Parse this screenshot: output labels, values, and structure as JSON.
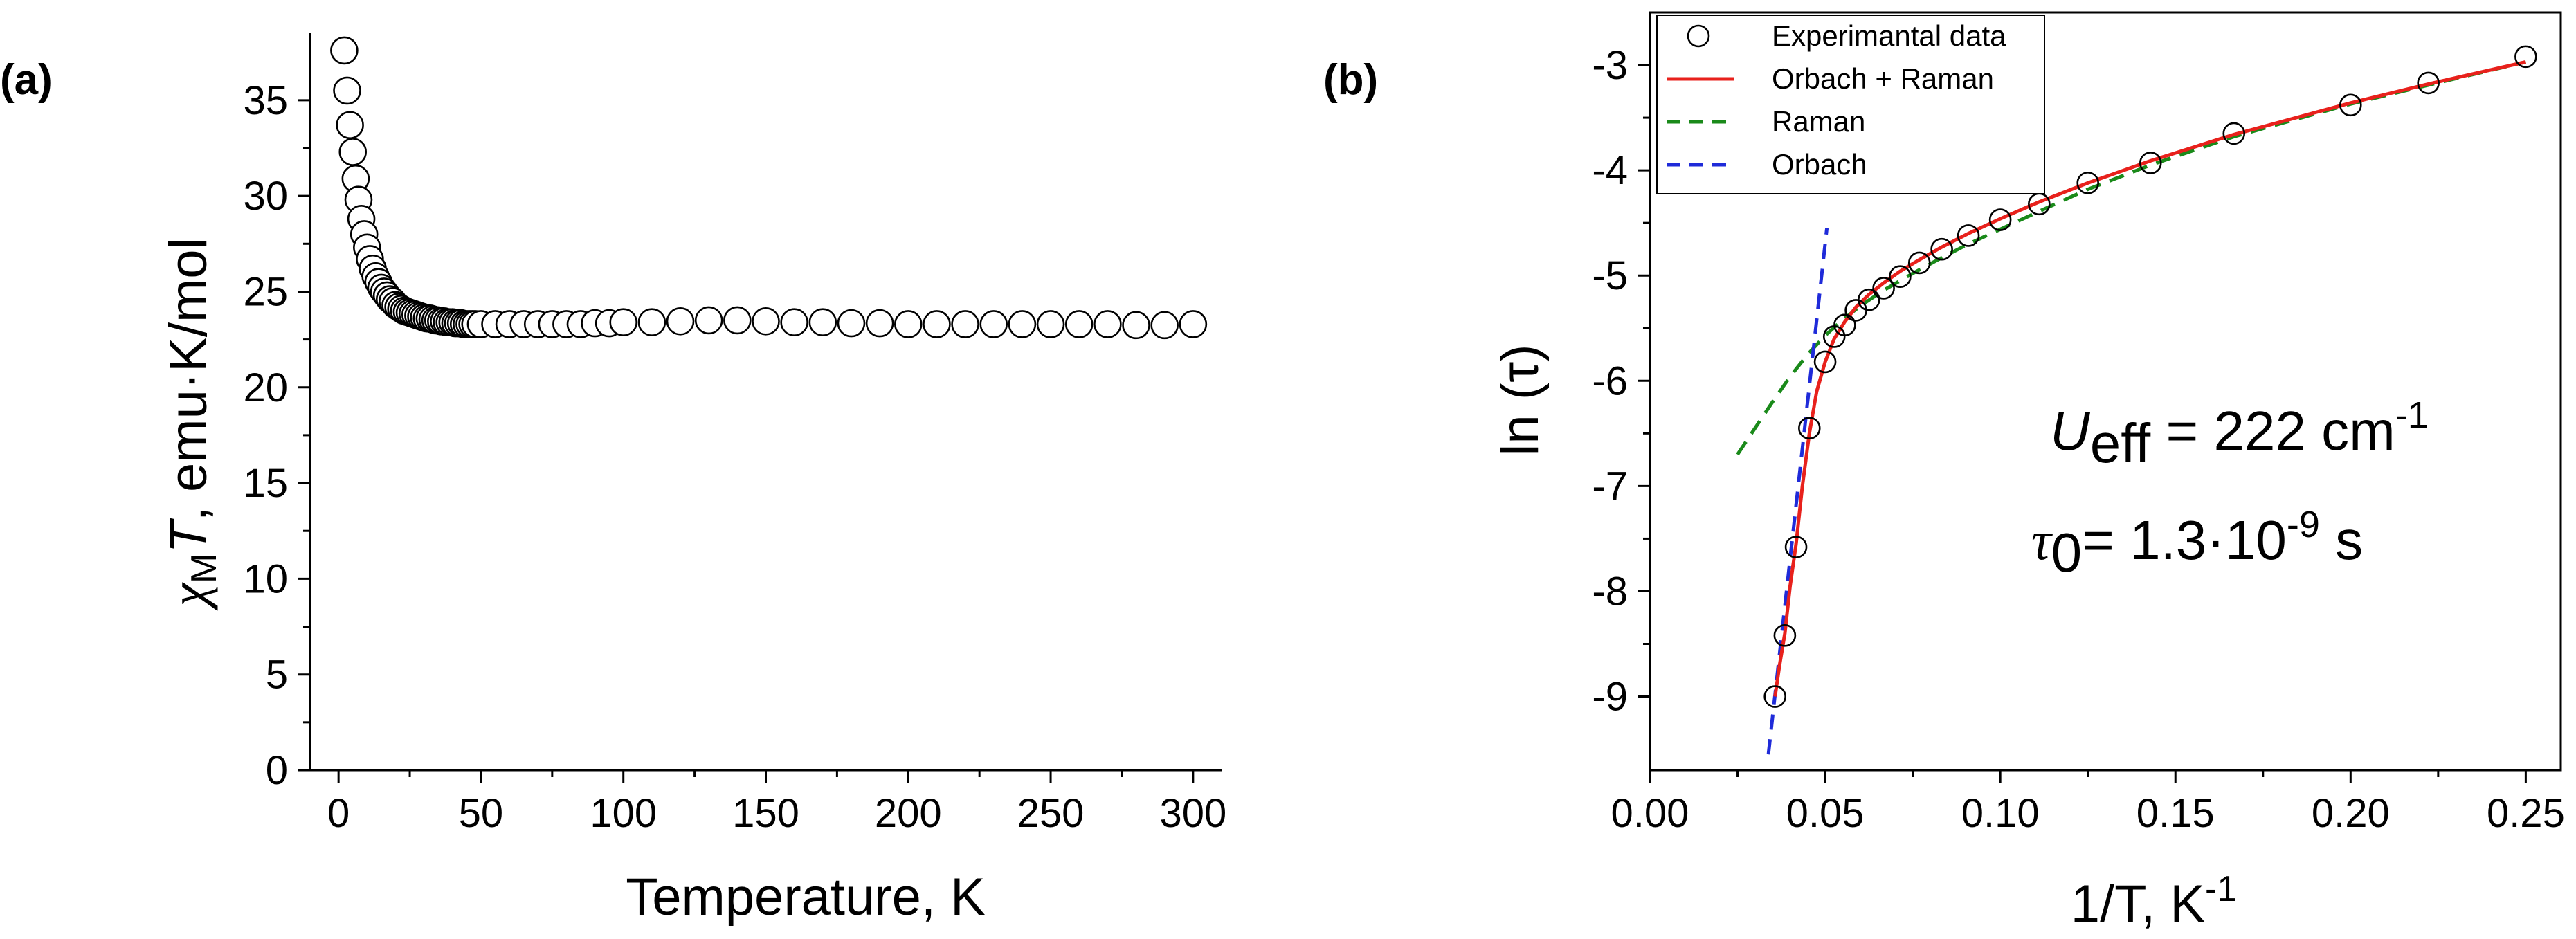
{
  "panels": [
    {
      "label": "(a)",
      "chart_data": {
        "type": "scatter",
        "xlabel": "Temperature, K",
        "ylabel": {
          "chi": "χ",
          "sub": "M",
          "T": "T",
          "rest": ", emu·K/mol"
        },
        "xlim": [
          -10,
          310
        ],
        "ylim": [
          0,
          38.5
        ],
        "xticks": [
          0,
          50,
          100,
          150,
          200,
          250,
          300
        ],
        "yticks": [
          0,
          5,
          10,
          15,
          20,
          25,
          30,
          35
        ],
        "grid": false,
        "series": [
          {
            "marker": "open-circle",
            "x": [
              2,
              3,
              4,
              5,
              6,
              7,
              8,
              9,
              10,
              11,
              12,
              13,
              14,
              15,
              16,
              17,
              18,
              19,
              20,
              21,
              22,
              23,
              24,
              25,
              26,
              27,
              28,
              29,
              30,
              31,
              32,
              33,
              34,
              35,
              36,
              37,
              38,
              39,
              40,
              41,
              42,
              43,
              44,
              45,
              46,
              47,
              48,
              50,
              55,
              60,
              65,
              70,
              75,
              80,
              85,
              90,
              95,
              100,
              110,
              120,
              130,
              140,
              150,
              160,
              170,
              180,
              190,
              200,
              210,
              220,
              230,
              240,
              250,
              260,
              270,
              280,
              290,
              300
            ],
            "y": [
              37.6,
              35.5,
              33.7,
              32.3,
              30.9,
              29.8,
              28.8,
              28.0,
              27.3,
              26.7,
              26.2,
              25.8,
              25.5,
              25.2,
              25.0,
              24.8,
              24.6,
              24.5,
              24.3,
              24.2,
              24.1,
              24.0,
              23.95,
              23.9,
              23.85,
              23.8,
              23.75,
              23.7,
              23.65,
              23.6,
              23.6,
              23.55,
              23.5,
              23.5,
              23.45,
              23.45,
              23.4,
              23.4,
              23.4,
              23.35,
              23.35,
              23.35,
              23.3,
              23.3,
              23.3,
              23.3,
              23.3,
              23.3,
              23.3,
              23.3,
              23.3,
              23.3,
              23.3,
              23.3,
              23.3,
              23.35,
              23.35,
              23.4,
              23.4,
              23.45,
              23.5,
              23.5,
              23.45,
              23.4,
              23.4,
              23.35,
              23.35,
              23.3,
              23.3,
              23.3,
              23.3,
              23.3,
              23.3,
              23.3,
              23.3,
              23.25,
              23.25,
              23.3
            ]
          }
        ]
      }
    },
    {
      "label": "(b)",
      "chart_data": {
        "type": "scatter",
        "xlabel": "1/T, K",
        "xlabel_sup": "-1",
        "ylabel": "ln (τ)",
        "xlim": [
          0.0,
          0.26
        ],
        "ylim": [
          -9.7,
          -2.5
        ],
        "xticks": [
          0.0,
          0.05,
          0.1,
          0.15,
          0.2,
          0.25
        ],
        "xtick_labels": [
          "0.00",
          "0.05",
          "0.10",
          "0.15",
          "0.20",
          "0.25"
        ],
        "yticks": [
          -9,
          -8,
          -7,
          -6,
          -5,
          -4,
          -3
        ],
        "grid": false,
        "legend": {
          "placement": "top-left",
          "entries": [
            {
              "name": "Experimantal data",
              "style": "open-circle",
              "color": "#000000"
            },
            {
              "name": "Orbach + Raman",
              "style": "solid",
              "color": "#e8211c"
            },
            {
              "name": "Raman",
              "style": "dashed",
              "color": "#1a8a1a"
            },
            {
              "name": "Orbach",
              "style": "dashed",
              "color": "#1f2bd9"
            }
          ]
        },
        "annotations": {
          "ueff_symbol": "U",
          "ueff_sub": "eff",
          "ueff_value": " = 222 cm",
          "ueff_sup": "-1",
          "tau_symbol": "τ",
          "tau_sub": "0",
          "tau_value": "= 1.3·10",
          "tau_sup": "-9",
          "tau_unit": " s"
        },
        "series": [
          {
            "name": "Experimantal data",
            "marker": "open-circle",
            "x": [
              0.0357,
              0.0385,
              0.0417,
              0.0455,
              0.05,
              0.0526,
              0.0556,
              0.0588,
              0.0625,
              0.0667,
              0.0714,
              0.0769,
              0.0833,
              0.0909,
              0.1,
              0.1111,
              0.125,
              0.1429,
              0.1667,
              0.2,
              0.2222,
              0.25
            ],
            "y": [
              -9.0,
              -8.42,
              -7.58,
              -6.45,
              -5.82,
              -5.58,
              -5.47,
              -5.33,
              -5.23,
              -5.12,
              -5.01,
              -4.88,
              -4.75,
              -4.62,
              -4.47,
              -4.32,
              -4.12,
              -3.93,
              -3.65,
              -3.38,
              -3.17,
              -2.92
            ]
          },
          {
            "name": "Orbach + Raman",
            "line": "solid",
            "color": "#e8211c",
            "x": [
              0.0357,
              0.037,
              0.0385,
              0.04,
              0.0417,
              0.0435,
              0.0455,
              0.0476,
              0.05,
              0.0526,
              0.0556,
              0.0588,
              0.0625,
              0.0667,
              0.0714,
              0.0769,
              0.0833,
              0.0909,
              0.1,
              0.1111,
              0.125,
              0.1429,
              0.1667,
              0.2,
              0.2222,
              0.25
            ],
            "y": [
              -9.0,
              -8.7,
              -8.4,
              -7.95,
              -7.55,
              -7.0,
              -6.5,
              -6.1,
              -5.82,
              -5.6,
              -5.44,
              -5.3,
              -5.18,
              -5.07,
              -4.96,
              -4.85,
              -4.73,
              -4.6,
              -4.46,
              -4.3,
              -4.12,
              -3.91,
              -3.66,
              -3.36,
              -3.18,
              -2.97
            ]
          },
          {
            "name": "Raman",
            "line": "dashed",
            "color": "#1a8a1a",
            "x": [
              0.025,
              0.03,
              0.035,
              0.04,
              0.045,
              0.05,
              0.055,
              0.06,
              0.0667,
              0.075,
              0.0833,
              0.0909,
              0.1,
              0.1111,
              0.125,
              0.1429,
              0.1667,
              0.2,
              0.2222,
              0.25
            ],
            "y": [
              -6.7,
              -6.45,
              -6.2,
              -5.96,
              -5.75,
              -5.57,
              -5.42,
              -5.29,
              -5.14,
              -4.98,
              -4.83,
              -4.7,
              -4.56,
              -4.39,
              -4.18,
              -3.95,
              -3.68,
              -3.37,
              -3.19,
              -2.97
            ]
          },
          {
            "name": "Orbach",
            "line": "dashed",
            "color": "#1f2bd9",
            "x": [
              0.0338,
              0.0505
            ],
            "y": [
              -9.55,
              -4.55
            ]
          }
        ]
      }
    }
  ]
}
